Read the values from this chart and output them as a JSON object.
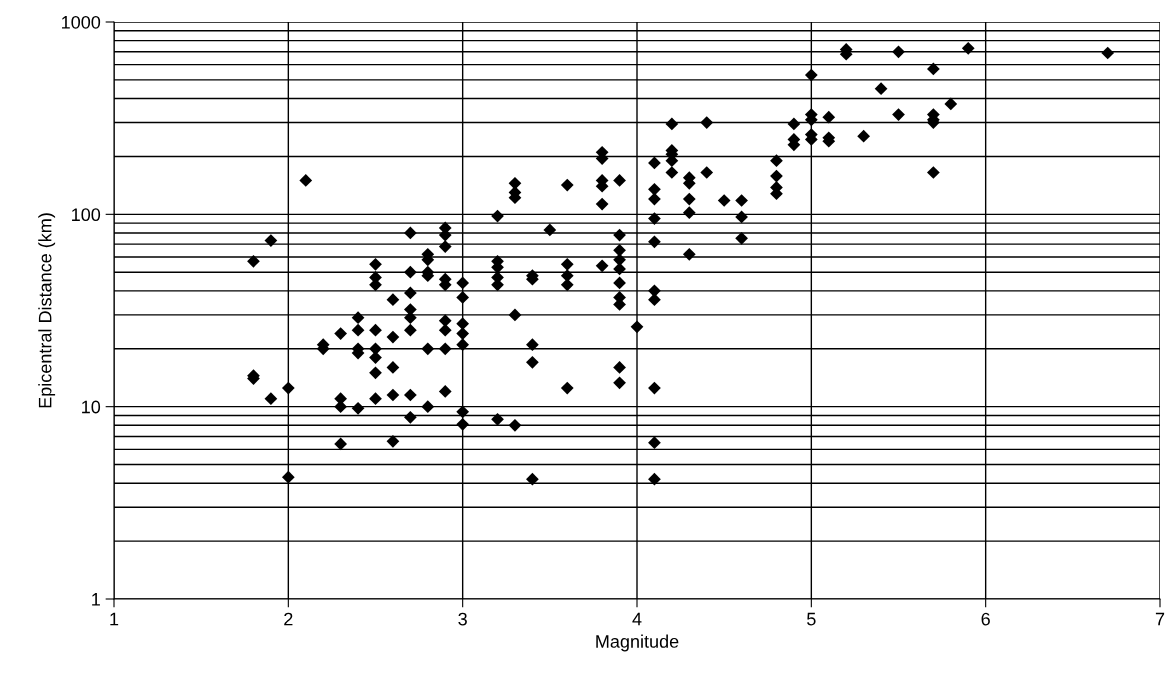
{
  "chart_data": {
    "type": "scatter",
    "xlabel": "Magnitude",
    "ylabel": "Epicentral Distance (km)",
    "xlim": [
      1,
      7
    ],
    "xticks": [
      1,
      2,
      3,
      4,
      5,
      6,
      7
    ],
    "ylim": [
      1,
      1000
    ],
    "yticks": [
      1,
      10,
      100,
      1000
    ],
    "log": "y",
    "grid": true,
    "marker": "diamond",
    "series": [
      {
        "color": "#000000",
        "x": [
          1.8,
          1.8,
          1.8,
          1.9,
          1.9,
          2.0,
          2.0,
          2.1,
          2.2,
          2.2,
          2.3,
          2.3,
          2.3,
          2.3,
          2.4,
          2.4,
          2.4,
          2.4,
          2.4,
          2.5,
          2.5,
          2.5,
          2.5,
          2.5,
          2.5,
          2.5,
          2.5,
          2.6,
          2.6,
          2.6,
          2.6,
          2.6,
          2.7,
          2.7,
          2.7,
          2.7,
          2.7,
          2.7,
          2.7,
          2.7,
          2.8,
          2.8,
          2.8,
          2.8,
          2.8,
          2.8,
          2.9,
          2.9,
          2.9,
          2.9,
          2.9,
          2.9,
          2.9,
          2.9,
          2.9,
          3.0,
          3.0,
          3.0,
          3.0,
          3.0,
          3.0,
          3.0,
          3.2,
          3.2,
          3.2,
          3.2,
          3.2,
          3.2,
          3.3,
          3.3,
          3.3,
          3.3,
          3.3,
          3.4,
          3.4,
          3.4,
          3.4,
          3.4,
          3.5,
          3.6,
          3.6,
          3.6,
          3.6,
          3.6,
          3.8,
          3.8,
          3.8,
          3.8,
          3.8,
          3.8,
          3.9,
          3.9,
          3.9,
          3.9,
          3.9,
          3.9,
          3.9,
          3.9,
          3.9,
          3.9,
          4.0,
          4.1,
          4.1,
          4.1,
          4.1,
          4.1,
          4.1,
          4.1,
          4.1,
          4.1,
          4.1,
          4.2,
          4.2,
          4.2,
          4.2,
          4.2,
          4.3,
          4.3,
          4.3,
          4.3,
          4.3,
          4.4,
          4.4,
          4.5,
          4.6,
          4.6,
          4.6,
          4.8,
          4.8,
          4.8,
          4.8,
          4.9,
          4.9,
          4.9,
          5.0,
          5.0,
          5.0,
          5.0,
          5.0,
          5.1,
          5.1,
          5.1,
          5.2,
          5.2,
          5.3,
          5.4,
          5.5,
          5.5,
          5.7,
          5.7,
          5.7,
          5.7,
          5.7,
          5.8,
          5.9,
          6.7
        ],
        "values": [
          57,
          14.5,
          14,
          73,
          11,
          12.5,
          4.3,
          150,
          20,
          21,
          24,
          11,
          10,
          6.4,
          29,
          25,
          20,
          19,
          9.8,
          55,
          47,
          43,
          25,
          20,
          18,
          15,
          11,
          36,
          23,
          16,
          11.5,
          6.6,
          80,
          50,
          39,
          32,
          29,
          25,
          11.5,
          8.8,
          62,
          58,
          50,
          48,
          20,
          10,
          85,
          78,
          68,
          46,
          43,
          28,
          25,
          20,
          12,
          44,
          37,
          27,
          24,
          21,
          9.4,
          8.1,
          98,
          57,
          53,
          47,
          43,
          8.6,
          145,
          130,
          122,
          30,
          8,
          48,
          46,
          21,
          17,
          4.2,
          83,
          142,
          55,
          48,
          43,
          12.5,
          210,
          195,
          150,
          140,
          113,
          54,
          150,
          78,
          65,
          58,
          52,
          44,
          37,
          34,
          16,
          13.3,
          26,
          185,
          135,
          120,
          95,
          72,
          40,
          36,
          12.5,
          6.5,
          4.2,
          295,
          215,
          205,
          190,
          165,
          155,
          145,
          120,
          102,
          62,
          300,
          165,
          118,
          118,
          97,
          75,
          190,
          158,
          138,
          128,
          295,
          245,
          230,
          530,
          330,
          310,
          260,
          245,
          320,
          250,
          240,
          720,
          680,
          255,
          450,
          700,
          330,
          570,
          330,
          310,
          300,
          165,
          375,
          730,
          690
        ]
      }
    ]
  }
}
